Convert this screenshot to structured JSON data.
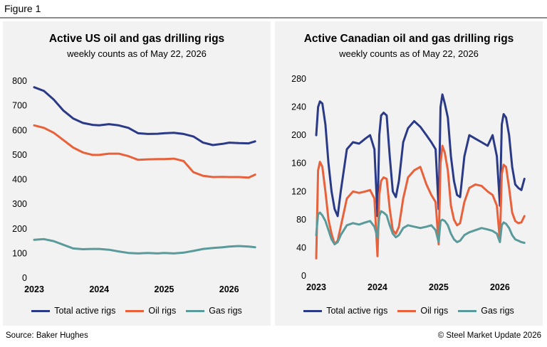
{
  "figure_label": "Figure 1",
  "source": "Source: Baker Hughes",
  "copyright": "© Steel Market Update 2026",
  "colors": {
    "total": "#2b3a87",
    "oil": "#e8613a",
    "gas": "#5b9a9a"
  },
  "chart_data": [
    {
      "type": "line",
      "title": "Active US oil and gas drilling rigs",
      "subtitle": "weekly counts as of May 22, 2026",
      "ylim": [
        0,
        800
      ],
      "yticks": [
        0,
        100,
        200,
        300,
        400,
        500,
        600,
        700,
        800
      ],
      "xlim": [
        2023.0,
        2026.42
      ],
      "xticks": [
        2023,
        2024,
        2025,
        2026
      ],
      "grid": false,
      "legend": "bottom",
      "series": [
        {
          "name": "Total active rigs",
          "x": [
            2023.0,
            2023.15,
            2023.3,
            2023.45,
            2023.6,
            2023.75,
            2023.9,
            2024.0,
            2024.15,
            2024.3,
            2024.45,
            2024.6,
            2024.75,
            2024.9,
            2025.0,
            2025.15,
            2025.3,
            2025.45,
            2025.6,
            2025.75,
            2025.9,
            2026.0,
            2026.15,
            2026.3,
            2026.4
          ],
          "values": [
            775,
            760,
            725,
            680,
            648,
            630,
            622,
            620,
            625,
            620,
            610,
            588,
            585,
            586,
            588,
            590,
            585,
            575,
            550,
            540,
            545,
            550,
            548,
            547,
            555
          ]
        },
        {
          "name": "Oil rigs",
          "x": [
            2023.0,
            2023.15,
            2023.3,
            2023.45,
            2023.6,
            2023.75,
            2023.9,
            2024.0,
            2024.15,
            2024.3,
            2024.45,
            2024.6,
            2024.75,
            2024.9,
            2025.0,
            2025.15,
            2025.3,
            2025.45,
            2025.6,
            2025.75,
            2025.9,
            2026.0,
            2026.15,
            2026.3,
            2026.4
          ],
          "values": [
            620,
            610,
            590,
            560,
            530,
            510,
            500,
            500,
            505,
            505,
            495,
            480,
            482,
            483,
            483,
            485,
            475,
            430,
            415,
            410,
            411,
            410,
            410,
            408,
            420
          ]
        },
        {
          "name": "Gas rigs",
          "x": [
            2023.0,
            2023.15,
            2023.3,
            2023.45,
            2023.6,
            2023.75,
            2023.9,
            2024.0,
            2024.15,
            2024.3,
            2024.45,
            2024.6,
            2024.75,
            2024.9,
            2025.0,
            2025.15,
            2025.3,
            2025.45,
            2025.6,
            2025.75,
            2025.9,
            2026.0,
            2026.15,
            2026.3,
            2026.4
          ],
          "values": [
            155,
            158,
            150,
            135,
            120,
            117,
            118,
            118,
            115,
            108,
            102,
            100,
            102,
            100,
            102,
            100,
            103,
            110,
            118,
            122,
            125,
            128,
            130,
            128,
            125
          ]
        }
      ]
    },
    {
      "type": "line",
      "title": "Active Canadian oil and gas drilling rigs",
      "subtitle": "weekly counts as of May 22, 2026",
      "ylim": [
        0,
        280
      ],
      "yticks": [
        0,
        40,
        80,
        120,
        160,
        200,
        240,
        280
      ],
      "xlim": [
        2023.0,
        2026.42
      ],
      "xticks": [
        2023,
        2024,
        2025,
        2026
      ],
      "grid": false,
      "legend": "bottom",
      "series": [
        {
          "name": "Total active rigs",
          "x": [
            2023.0,
            2023.03,
            2023.06,
            2023.1,
            2023.15,
            2023.2,
            2023.25,
            2023.3,
            2023.35,
            2023.4,
            2023.5,
            2023.6,
            2023.7,
            2023.8,
            2023.88,
            2023.95,
            2024.0,
            2024.03,
            2024.06,
            2024.1,
            2024.15,
            2024.2,
            2024.25,
            2024.3,
            2024.35,
            2024.42,
            2024.5,
            2024.6,
            2024.7,
            2024.8,
            2024.88,
            2024.95,
            2025.0,
            2025.03,
            2025.06,
            2025.1,
            2025.15,
            2025.2,
            2025.25,
            2025.3,
            2025.35,
            2025.42,
            2025.5,
            2025.6,
            2025.7,
            2025.8,
            2025.88,
            2025.95,
            2026.0,
            2026.03,
            2026.06,
            2026.1,
            2026.15,
            2026.2,
            2026.25,
            2026.3,
            2026.35,
            2026.4
          ],
          "values": [
            200,
            240,
            248,
            245,
            215,
            160,
            120,
            95,
            85,
            120,
            180,
            190,
            188,
            195,
            200,
            180,
            85,
            200,
            228,
            232,
            228,
            170,
            120,
            112,
            135,
            190,
            210,
            220,
            212,
            200,
            190,
            180,
            95,
            240,
            258,
            245,
            225,
            170,
            135,
            115,
            112,
            170,
            200,
            195,
            190,
            185,
            200,
            170,
            100,
            215,
            230,
            225,
            200,
            155,
            130,
            125,
            122,
            138
          ]
        },
        {
          "name": "Oil rigs",
          "x": [
            2023.0,
            2023.03,
            2023.06,
            2023.1,
            2023.15,
            2023.2,
            2023.25,
            2023.3,
            2023.35,
            2023.4,
            2023.5,
            2023.6,
            2023.7,
            2023.8,
            2023.88,
            2023.95,
            2024.0,
            2024.03,
            2024.06,
            2024.1,
            2024.15,
            2024.2,
            2024.25,
            2024.3,
            2024.35,
            2024.42,
            2024.5,
            2024.6,
            2024.7,
            2024.8,
            2024.88,
            2024.95,
            2025.0,
            2025.03,
            2025.06,
            2025.1,
            2025.15,
            2025.2,
            2025.25,
            2025.3,
            2025.35,
            2025.42,
            2025.5,
            2025.6,
            2025.7,
            2025.8,
            2025.88,
            2025.95,
            2026.0,
            2026.03,
            2026.06,
            2026.1,
            2026.15,
            2026.2,
            2026.25,
            2026.3,
            2026.35,
            2026.4
          ],
          "values": [
            25,
            150,
            162,
            155,
            120,
            80,
            60,
            45,
            50,
            70,
            110,
            120,
            118,
            120,
            122,
            110,
            28,
            115,
            135,
            140,
            138,
            95,
            65,
            60,
            70,
            110,
            140,
            150,
            155,
            130,
            115,
            105,
            45,
            160,
            185,
            175,
            150,
            100,
            80,
            72,
            75,
            105,
            125,
            130,
            128,
            120,
            115,
            100,
            50,
            145,
            158,
            155,
            125,
            90,
            78,
            75,
            76,
            85
          ]
        },
        {
          "name": "Gas rigs",
          "x": [
            2023.0,
            2023.03,
            2023.06,
            2023.1,
            2023.15,
            2023.2,
            2023.25,
            2023.3,
            2023.35,
            2023.4,
            2023.5,
            2023.6,
            2023.7,
            2023.8,
            2023.88,
            2023.95,
            2024.0,
            2024.03,
            2024.06,
            2024.1,
            2024.15,
            2024.2,
            2024.25,
            2024.3,
            2024.35,
            2024.42,
            2024.5,
            2024.6,
            2024.7,
            2024.8,
            2024.88,
            2024.95,
            2025.0,
            2025.03,
            2025.06,
            2025.1,
            2025.15,
            2025.2,
            2025.25,
            2025.3,
            2025.35,
            2025.42,
            2025.5,
            2025.6,
            2025.7,
            2025.8,
            2025.88,
            2025.95,
            2026.0,
            2026.03,
            2026.06,
            2026.1,
            2026.15,
            2026.2,
            2026.25,
            2026.3,
            2026.35,
            2026.4
          ],
          "values": [
            58,
            88,
            90,
            86,
            78,
            65,
            52,
            45,
            48,
            58,
            72,
            75,
            73,
            76,
            78,
            70,
            55,
            85,
            92,
            90,
            86,
            72,
            60,
            55,
            58,
            68,
            72,
            70,
            68,
            70,
            72,
            65,
            48,
            78,
            80,
            78,
            72,
            60,
            52,
            48,
            50,
            58,
            62,
            65,
            68,
            66,
            64,
            60,
            48,
            72,
            76,
            74,
            68,
            58,
            52,
            50,
            48,
            47
          ]
        }
      ]
    }
  ]
}
